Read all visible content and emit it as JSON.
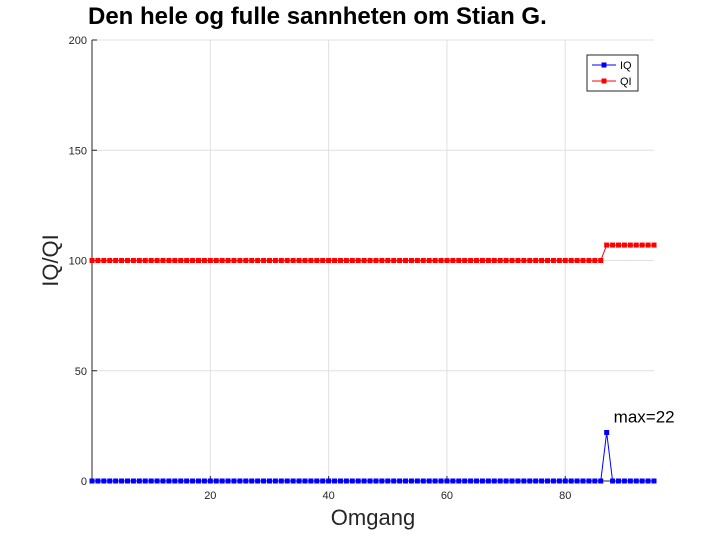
{
  "chart_data": {
    "type": "line",
    "title": "Den hele og fulle sannheten om Stian G.",
    "xlabel": "Omgang",
    "ylabel": "IQ/QI",
    "xlim": [
      0,
      95
    ],
    "ylim": [
      0,
      200
    ],
    "x_ticks": [
      20,
      40,
      60,
      80
    ],
    "y_ticks": [
      0,
      50,
      100,
      150,
      200
    ],
    "grid": true,
    "legend_position": "top-right",
    "x": [
      0,
      1,
      2,
      3,
      4,
      5,
      6,
      7,
      8,
      9,
      10,
      11,
      12,
      13,
      14,
      15,
      16,
      17,
      18,
      19,
      20,
      21,
      22,
      23,
      24,
      25,
      26,
      27,
      28,
      29,
      30,
      31,
      32,
      33,
      34,
      35,
      36,
      37,
      38,
      39,
      40,
      41,
      42,
      43,
      44,
      45,
      46,
      47,
      48,
      49,
      50,
      51,
      52,
      53,
      54,
      55,
      56,
      57,
      58,
      59,
      60,
      61,
      62,
      63,
      64,
      65,
      66,
      67,
      68,
      69,
      70,
      71,
      72,
      73,
      74,
      75,
      76,
      77,
      78,
      79,
      80,
      81,
      82,
      83,
      84,
      85,
      86,
      87,
      88,
      89,
      90,
      91,
      92,
      93,
      94,
      95
    ],
    "series": [
      {
        "name": "IQ",
        "color": "#0000ff",
        "values": [
          0,
          0,
          0,
          0,
          0,
          0,
          0,
          0,
          0,
          0,
          0,
          0,
          0,
          0,
          0,
          0,
          0,
          0,
          0,
          0,
          0,
          0,
          0,
          0,
          0,
          0,
          0,
          0,
          0,
          0,
          0,
          0,
          0,
          0,
          0,
          0,
          0,
          0,
          0,
          0,
          0,
          0,
          0,
          0,
          0,
          0,
          0,
          0,
          0,
          0,
          0,
          0,
          0,
          0,
          0,
          0,
          0,
          0,
          0,
          0,
          0,
          0,
          0,
          0,
          0,
          0,
          0,
          0,
          0,
          0,
          0,
          0,
          0,
          0,
          0,
          0,
          0,
          0,
          0,
          0,
          0,
          0,
          0,
          0,
          0,
          0,
          0,
          22,
          0,
          0,
          0,
          0,
          0,
          0,
          0,
          0
        ]
      },
      {
        "name": "QI",
        "color": "#ff0000",
        "values": [
          100,
          100,
          100,
          100,
          100,
          100,
          100,
          100,
          100,
          100,
          100,
          100,
          100,
          100,
          100,
          100,
          100,
          100,
          100,
          100,
          100,
          100,
          100,
          100,
          100,
          100,
          100,
          100,
          100,
          100,
          100,
          100,
          100,
          100,
          100,
          100,
          100,
          100,
          100,
          100,
          100,
          100,
          100,
          100,
          100,
          100,
          100,
          100,
          100,
          100,
          100,
          100,
          100,
          100,
          100,
          100,
          100,
          100,
          100,
          100,
          100,
          100,
          100,
          100,
          100,
          100,
          100,
          100,
          100,
          100,
          100,
          100,
          100,
          100,
          100,
          100,
          100,
          100,
          100,
          100,
          100,
          100,
          100,
          100,
          100,
          100,
          100,
          107,
          107,
          107,
          107,
          107,
          107,
          107,
          107,
          107
        ]
      }
    ],
    "annotation": {
      "text": "max=22",
      "x": 87,
      "y": 22
    }
  }
}
